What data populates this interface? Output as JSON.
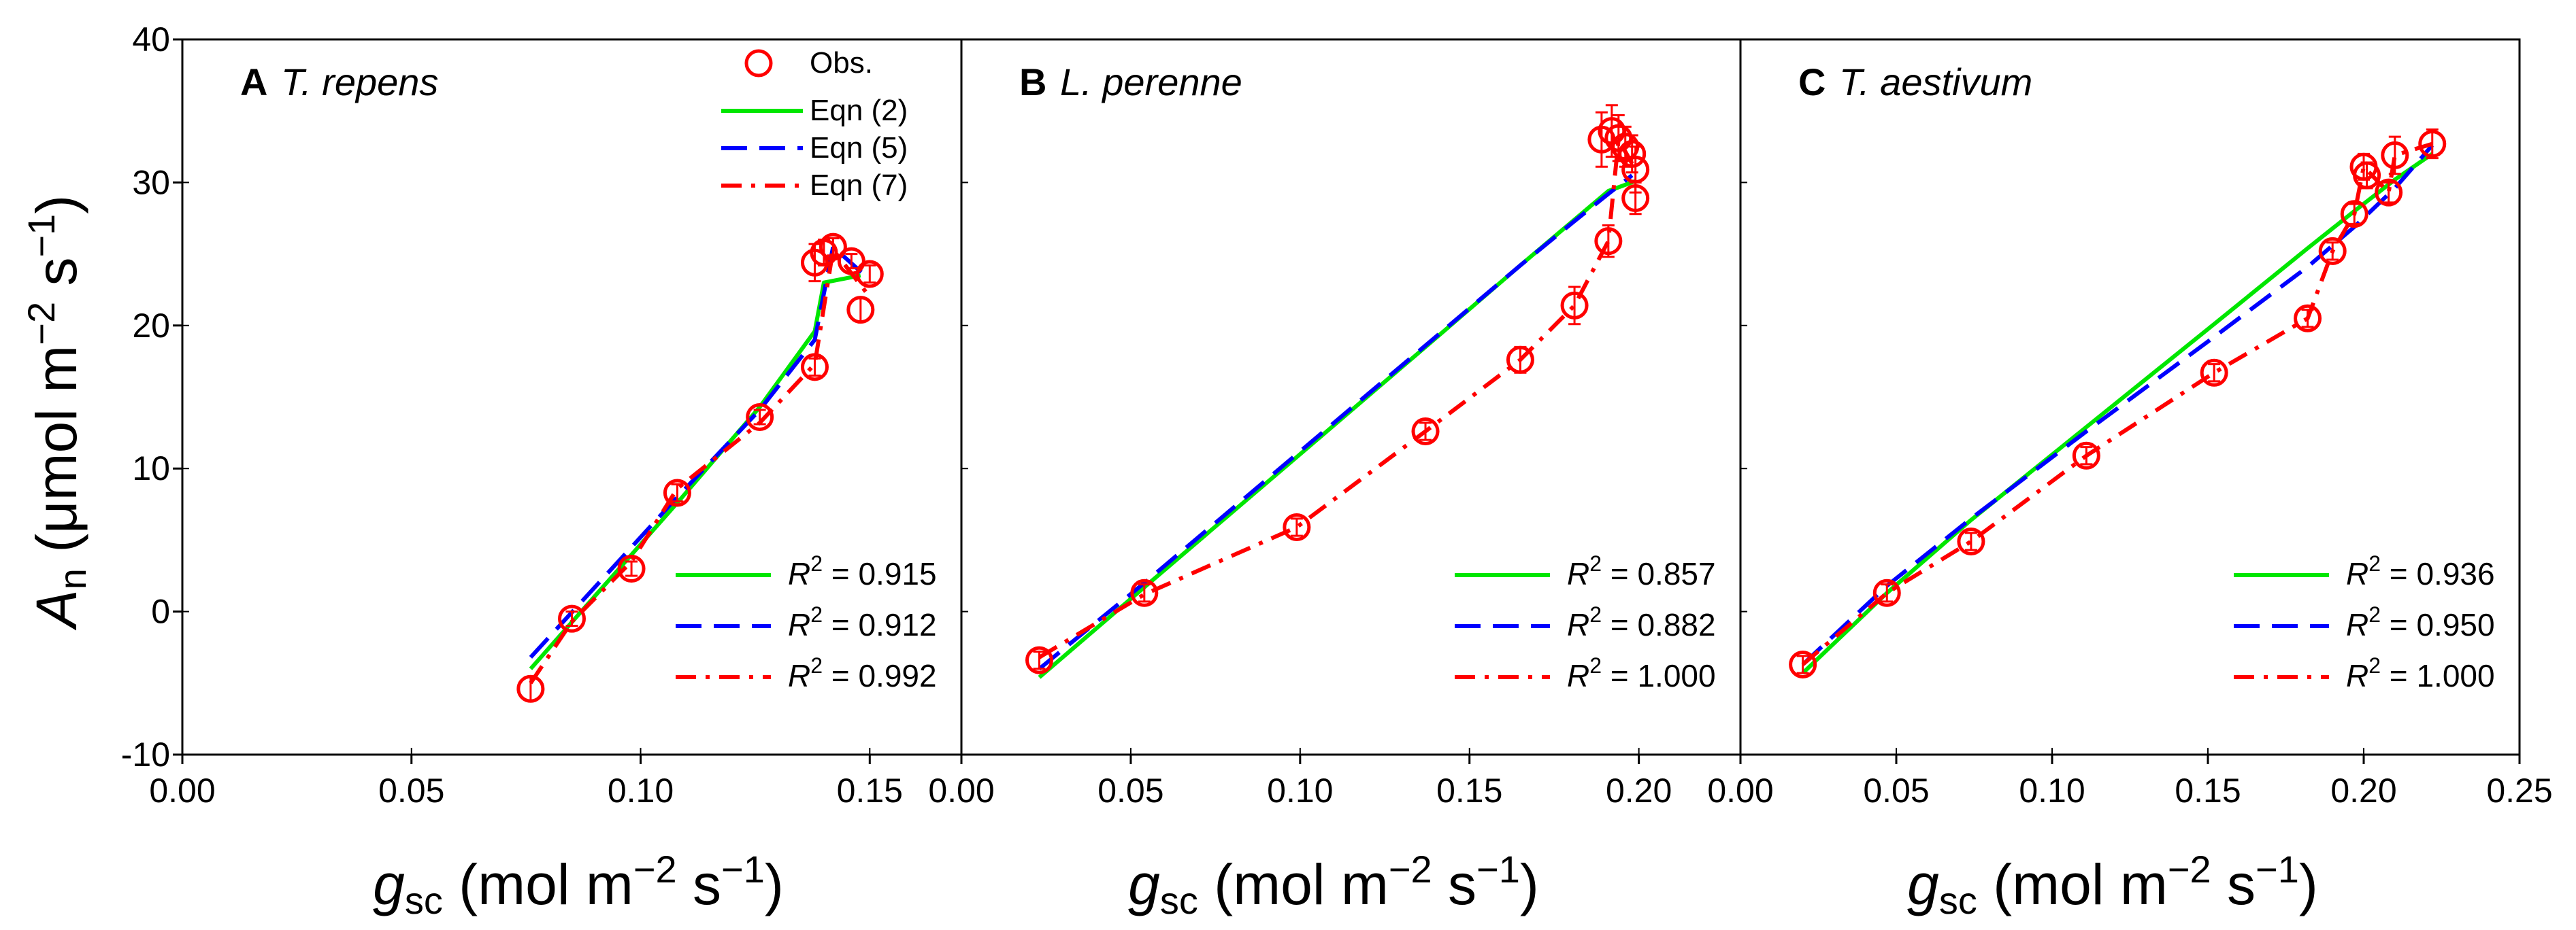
{
  "figure": {
    "y_axis_title": "A",
    "y_axis_title_sub": "n",
    "y_axis_unit_pre": " (μmol m",
    "y_axis_unit_exp1": "−2",
    "y_axis_unit_mid": " s",
    "y_axis_unit_exp2": "−1",
    "y_axis_unit_post": ")",
    "x_axis_title": "g",
    "x_axis_title_sub": "sc",
    "x_axis_unit_pre": " (mol m",
    "x_axis_unit_exp1": "−2",
    "x_axis_unit_mid": " s",
    "x_axis_unit_exp2": "−1",
    "x_axis_unit_post": ")",
    "y_ticks": [
      "-10",
      "0",
      "10",
      "20",
      "30",
      "40"
    ],
    "legend": [
      {
        "label": "Obs.",
        "color": "#ff0000",
        "kind": "marker"
      },
      {
        "label": "Eqn (2)",
        "color": "#00e600",
        "kind": "solid"
      },
      {
        "label": "Eqn (5)",
        "color": "#0000ff",
        "kind": "dash"
      },
      {
        "label": "Eqn (7)",
        "color": "#ff0000",
        "kind": "dashdot"
      }
    ]
  },
  "chart_data": [
    {
      "type": "line",
      "panel_letter": "A",
      "species": "T. repens",
      "xlim": [
        0,
        0.17
      ],
      "ylim": [
        -10,
        40
      ],
      "x_ticks": [
        "0.00",
        "0.05",
        "0.10",
        "0.15"
      ],
      "x_tick_values": [
        0,
        0.05,
        0.1,
        0.15
      ],
      "observed": {
        "name": "Obs.",
        "x": [
          0.076,
          0.085,
          0.098,
          0.108,
          0.126,
          0.138,
          0.138,
          0.14,
          0.142,
          0.146,
          0.148,
          0.15
        ],
        "y": [
          -5.4,
          -0.5,
          3.0,
          8.3,
          13.6,
          17.1,
          24.4,
          25.1,
          25.5,
          24.5,
          21.1,
          23.6
        ],
        "err": [
          0.8,
          0.5,
          0.5,
          0.6,
          0.5,
          0.6,
          1.3,
          0.9,
          0.6,
          0.5,
          0.8,
          0.6
        ]
      },
      "series": [
        {
          "name": "Eqn (2)",
          "x": [
            0.076,
            0.108,
            0.126,
            0.138,
            0.14,
            0.148
          ],
          "y": [
            -4.0,
            7.6,
            14.3,
            19.6,
            23.0,
            23.5
          ]
        },
        {
          "name": "Eqn (5)",
          "x": [
            0.076,
            0.108,
            0.126,
            0.138,
            0.142,
            0.15
          ],
          "y": [
            -3.2,
            8.0,
            14.1,
            19.0,
            25.5,
            23.2
          ]
        },
        {
          "name": "Eqn (7)",
          "x": [
            0.076,
            0.085,
            0.098,
            0.108,
            0.126,
            0.138,
            0.142,
            0.15
          ],
          "y": [
            -5.0,
            -0.7,
            3.5,
            8.6,
            13.2,
            17.3,
            25.3,
            22.0
          ]
        }
      ],
      "r2": [
        {
          "name": "Eqn (2)",
          "value": "0.915"
        },
        {
          "name": "Eqn (5)",
          "value": "0.912"
        },
        {
          "name": "Eqn (7)",
          "value": "0.992"
        }
      ]
    },
    {
      "type": "line",
      "panel_letter": "B",
      "species": "L. perenne",
      "xlim": [
        0,
        0.23
      ],
      "ylim": [
        -10,
        40
      ],
      "x_ticks": [
        "0.00",
        "0.05",
        "0.10",
        "0.15",
        "0.20"
      ],
      "x_tick_values": [
        0,
        0.05,
        0.1,
        0.15,
        0.2
      ],
      "observed": {
        "name": "Obs.",
        "x": [
          0.023,
          0.054,
          0.099,
          0.137,
          0.165,
          0.181,
          0.191,
          0.189,
          0.192,
          0.194,
          0.196,
          0.198,
          0.199,
          0.199
        ],
        "y": [
          -3.4,
          1.3,
          5.9,
          12.6,
          17.6,
          21.4,
          25.9,
          33.0,
          33.6,
          33.1,
          32.5,
          32.0,
          30.9,
          28.9
        ],
        "err": [
          0.6,
          0.6,
          0.6,
          0.6,
          0.9,
          1.3,
          1.1,
          1.9,
          1.8,
          1.6,
          1.4,
          1.3,
          1.6,
          1.1
        ]
      },
      "series": [
        {
          "name": "Eqn (2)",
          "x": [
            0.023,
            0.054,
            0.099,
            0.137,
            0.165,
            0.181,
            0.191,
            0.199
          ],
          "y": [
            -4.6,
            1.7,
            10.8,
            18.5,
            24.2,
            27.4,
            29.4,
            30.1
          ]
        },
        {
          "name": "Eqn (5)",
          "x": [
            0.023,
            0.054,
            0.099,
            0.137,
            0.165,
            0.181,
            0.191,
            0.198
          ],
          "y": [
            -4.0,
            2.0,
            11.0,
            18.6,
            24.2,
            27.3,
            29.2,
            30.5
          ]
        },
        {
          "name": "Eqn (7)",
          "x": [
            0.023,
            0.054,
            0.099,
            0.137,
            0.165,
            0.181,
            0.191,
            0.194,
            0.199
          ],
          "y": [
            -3.2,
            1.2,
            5.9,
            12.6,
            17.6,
            21.4,
            25.9,
            33.0,
            30.9
          ]
        }
      ],
      "r2": [
        {
          "name": "Eqn (2)",
          "value": "0.857"
        },
        {
          "name": "Eqn (5)",
          "value": "0.882"
        },
        {
          "name": "Eqn (7)",
          "value": "1.000"
        }
      ]
    },
    {
      "type": "line",
      "panel_letter": "C",
      "species": "T. aestivum",
      "xlim": [
        0,
        0.25
      ],
      "ylim": [
        -10,
        40
      ],
      "x_ticks": [
        "0.00",
        "0.05",
        "0.10",
        "0.15",
        "0.20",
        "0.25"
      ],
      "x_tick_values": [
        0,
        0.05,
        0.1,
        0.15,
        0.2,
        0.25
      ],
      "observed": {
        "name": "Obs.",
        "x": [
          0.02,
          0.047,
          0.074,
          0.111,
          0.152,
          0.182,
          0.19,
          0.197,
          0.2,
          0.201,
          0.208,
          0.21,
          0.222
        ],
        "y": [
          -3.7,
          1.3,
          4.9,
          10.9,
          16.7,
          20.5,
          25.2,
          27.8,
          31.1,
          30.5,
          29.3,
          31.9,
          32.7
        ],
        "err": [
          0.6,
          0.6,
          0.6,
          0.6,
          0.6,
          0.6,
          0.6,
          0.7,
          0.9,
          0.9,
          0.7,
          1.3,
          1.0
        ]
      },
      "series": [
        {
          "name": "Eqn (2)",
          "x": [
            0.02,
            0.047,
            0.074,
            0.111,
            0.152,
            0.182,
            0.197,
            0.21,
            0.222
          ],
          "y": [
            -4.3,
            1.3,
            6.4,
            12.9,
            20.1,
            25.4,
            28.0,
            30.2,
            32.0
          ]
        },
        {
          "name": "Eqn (5)",
          "x": [
            0.02,
            0.047,
            0.074,
            0.111,
            0.152,
            0.182,
            0.197,
            0.21,
            0.222
          ],
          "y": [
            -3.7,
            1.8,
            6.5,
            12.6,
            19.2,
            24.1,
            26.9,
            29.6,
            32.6
          ]
        },
        {
          "name": "Eqn (7)",
          "x": [
            0.02,
            0.047,
            0.074,
            0.111,
            0.152,
            0.182,
            0.19,
            0.197,
            0.2,
            0.208,
            0.21,
            0.222
          ],
          "y": [
            -3.7,
            1.3,
            4.9,
            10.9,
            16.7,
            20.5,
            25.2,
            27.8,
            31.1,
            29.3,
            31.9,
            32.7
          ]
        }
      ],
      "r2": [
        {
          "name": "Eqn (2)",
          "value": "0.936"
        },
        {
          "name": "Eqn (5)",
          "value": "0.950"
        },
        {
          "name": "Eqn (7)",
          "value": "1.000"
        }
      ]
    }
  ]
}
